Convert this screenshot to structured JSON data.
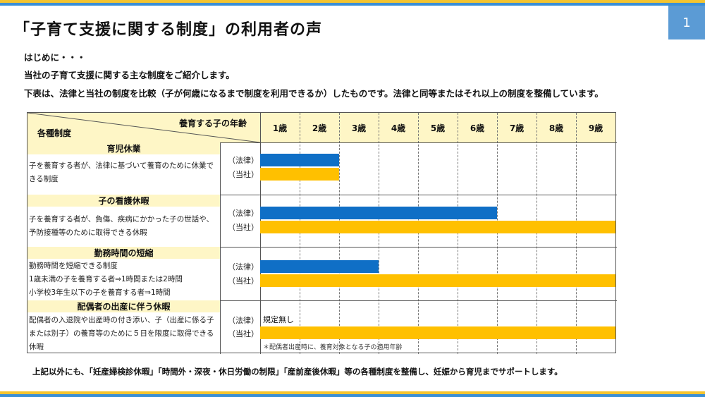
{
  "page": {
    "number": "1",
    "title": "「子育て支援に関する制度」の利用者の声",
    "colors": {
      "accent_blue": "#3a8fd6",
      "accent_yellow": "#f4c430",
      "bar_legal": "#0f6fc6",
      "bar_company": "#ffc000",
      "header_fill": "#fef6c6"
    }
  },
  "intro": {
    "line1": "はじめに・・・",
    "line2": "当社の子育て支援に関する主な制度をご紹介します。",
    "line3": "下表は、法律と当社の制度を比較（子が何歳になるまで制度を利用できるか）したものです。法律と同等またはそれ以上の制度を整備しています。"
  },
  "table": {
    "header_age": "養育する子の年齢",
    "header_system": "各種制度",
    "years": [
      "1歳",
      "2歳",
      "3歳",
      "4歳",
      "5歳",
      "6歳",
      "7歳",
      "8歳",
      "9歳"
    ],
    "sections": [
      {
        "title": "育児休業",
        "description": "子を養育する者が、法律に基づいて養育のために休業できる制度",
        "legal_label": "（法律）",
        "company_label": "（当社）",
        "legal_until_years": 2,
        "company_until_years": 2
      },
      {
        "title": "子の看護休暇",
        "description": "子を養育する者が、負傷、疾病にかかった子の世話や、予防接種等のために取得できる休暇",
        "legal_label": "（法律）",
        "company_label": "（当社）",
        "legal_until_years": 6,
        "company_until_years": 9
      },
      {
        "title": "勤務時間の短縮",
        "description_lines": [
          "勤務時間を短縮できる制度",
          "1歳未満の子を養育する者⇒1時間または2時間",
          "小学校3年生以下の子を養育する者⇒1時間"
        ],
        "legal_label": "（法律）",
        "company_label": "（当社）",
        "legal_until_years": 3,
        "company_until_years": 9
      },
      {
        "title": "配偶者の出産に伴う休暇",
        "description": "配偶者の入退院や出産時の付き添い、子（出産に係る子または別子）の養育等のために５日を限度に取得できる休暇",
        "legal_label": "（法律）",
        "company_label": "（当社）",
        "legal_text": "規定無し",
        "company_until_years": 9,
        "note": "＊配偶者出産時に、養育対象となる子の適用年齢"
      }
    ]
  },
  "footer": "上記以外にも、「妊産婦検診休暇」「時間外・深夜・休日労働の制限」「産前産後休暇」等の各種制度を整備し、妊娠から育児までサポートします。"
}
